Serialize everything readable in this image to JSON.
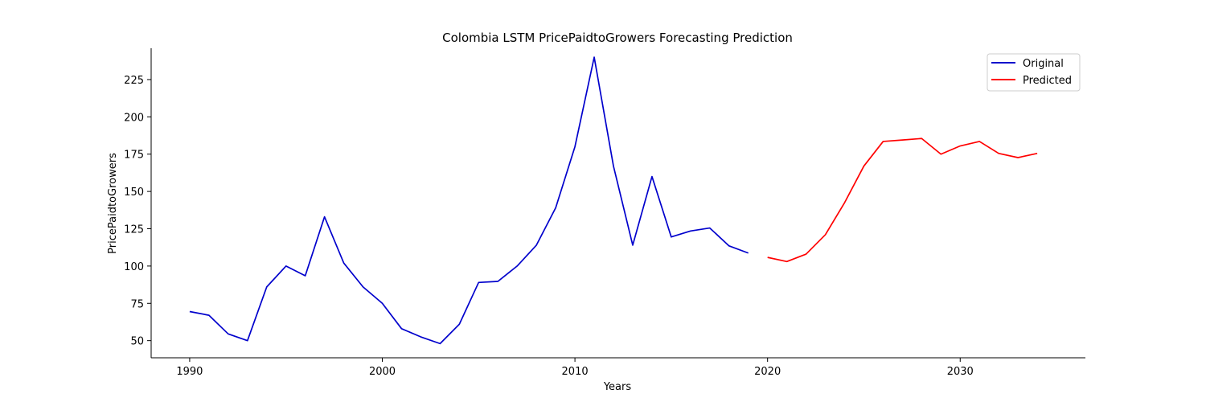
{
  "chart_data": {
    "type": "line",
    "title": "Colombia LSTM PricePaidtoGrowers Forecasting Prediction",
    "xlabel": "Years",
    "ylabel": "PricePaidtoGrowers",
    "xlim": [
      1988,
      2036.5
    ],
    "ylim": [
      38.5,
      246
    ],
    "xticks": [
      1990,
      2000,
      2010,
      2020,
      2030
    ],
    "yticks": [
      50,
      75,
      100,
      125,
      150,
      175,
      200,
      225
    ],
    "grid": false,
    "legend_position": "top-right",
    "series": [
      {
        "name": "Original",
        "color": "#0000cc",
        "x": [
          1990,
          1991,
          1992,
          1993,
          1994,
          1995,
          1996,
          1997,
          1998,
          1999,
          2000,
          2001,
          2002,
          2003,
          2004,
          2005,
          2006,
          2007,
          2008,
          2009,
          2010,
          2011,
          2012,
          2013,
          2014,
          2015,
          2016,
          2017,
          2018,
          2019
        ],
        "y": [
          69.5,
          67,
          54.5,
          50,
          86,
          100,
          93.5,
          133,
          102,
          86,
          75,
          58,
          52.5,
          48,
          61,
          89,
          89.7,
          100,
          114,
          139,
          180,
          240,
          167,
          114,
          160,
          119.5,
          123.5,
          125.5,
          113.5,
          108.7
        ]
      },
      {
        "name": "Predicted",
        "color": "#ff0000",
        "x": [
          2020,
          2021,
          2022,
          2023,
          2024,
          2025,
          2026,
          2027,
          2028,
          2029,
          2030,
          2031,
          2032,
          2033,
          2034
        ],
        "y": [
          105.8,
          103,
          108,
          121,
          142.5,
          167,
          183.5,
          184.5,
          185.5,
          175,
          180.5,
          183.5,
          175.5,
          172.7,
          175.5
        ]
      }
    ]
  }
}
